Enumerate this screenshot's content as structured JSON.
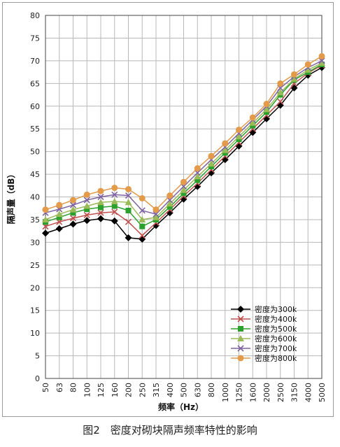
{
  "caption": "图2　密度对砌块隔声频率特性的影响",
  "chart_data": {
    "type": "line",
    "title": "",
    "xlabel": "频率（Hz）",
    "ylabel": "隔声量（dB）",
    "ylim": [
      0,
      80
    ],
    "yticks": [
      0,
      5,
      10,
      15,
      20,
      25,
      30,
      35,
      40,
      45,
      50,
      55,
      60,
      65,
      70,
      75,
      80
    ],
    "grid": true,
    "legend_position": "bottom-right",
    "categories": [
      "50",
      "63",
      "80",
      "100",
      "125",
      "160",
      "200",
      "250",
      "315",
      "400",
      "500",
      "630",
      "800",
      "1000",
      "1250",
      "1600",
      "2000",
      "2500",
      "3150",
      "4000",
      "5000"
    ],
    "series": [
      {
        "name": "密度为300k",
        "color": "#000000",
        "marker": "diamond",
        "values": [
          32.0,
          33.0,
          34.0,
          34.8,
          35.2,
          34.7,
          31.0,
          30.7,
          33.7,
          36.5,
          39.5,
          42.3,
          45.3,
          48.2,
          51.2,
          54.2,
          57.2,
          60.2,
          64.0,
          66.8,
          68.5
        ]
      },
      {
        "name": "密度为400k",
        "color": "#c0504d",
        "marker": "x",
        "values": [
          33.5,
          34.5,
          35.3,
          36.0,
          36.5,
          36.7,
          34.5,
          31.5,
          34.3,
          37.2,
          40.2,
          43.0,
          46.0,
          49.0,
          52.0,
          55.0,
          58.0,
          61.0,
          65.0,
          67.3,
          69.0
        ]
      },
      {
        "name": "密度为500k",
        "color": "#2ca02c",
        "marker": "square",
        "values": [
          34.5,
          35.5,
          36.5,
          37.3,
          37.7,
          38.0,
          37.0,
          33.5,
          35.0,
          37.8,
          40.8,
          43.7,
          46.7,
          49.7,
          52.7,
          55.7,
          58.7,
          62.5,
          65.8,
          67.5,
          69.2
        ]
      },
      {
        "name": "密度为600k",
        "color": "#9bbb59",
        "marker": "triangle",
        "values": [
          35.0,
          36.2,
          37.2,
          38.0,
          38.8,
          39.0,
          38.8,
          35.0,
          35.5,
          38.5,
          41.5,
          44.5,
          47.3,
          50.3,
          53.3,
          56.3,
          59.3,
          63.0,
          66.0,
          68.0,
          69.5
        ]
      },
      {
        "name": "密度为700k",
        "color": "#8064a2",
        "marker": "x",
        "values": [
          36.5,
          37.3,
          38.2,
          39.3,
          40.0,
          40.5,
          40.3,
          37.0,
          36.2,
          39.3,
          42.3,
          45.3,
          48.2,
          51.0,
          54.0,
          57.0,
          60.0,
          64.0,
          66.5,
          68.5,
          70.0
        ]
      },
      {
        "name": "密度为800k",
        "color": "#e39b4a",
        "marker": "circle",
        "values": [
          37.2,
          38.2,
          39.3,
          40.5,
          41.3,
          42.0,
          41.7,
          39.7,
          37.2,
          40.3,
          43.3,
          46.3,
          49.0,
          51.8,
          54.8,
          57.5,
          60.5,
          65.0,
          67.0,
          69.2,
          71.0
        ]
      }
    ]
  }
}
